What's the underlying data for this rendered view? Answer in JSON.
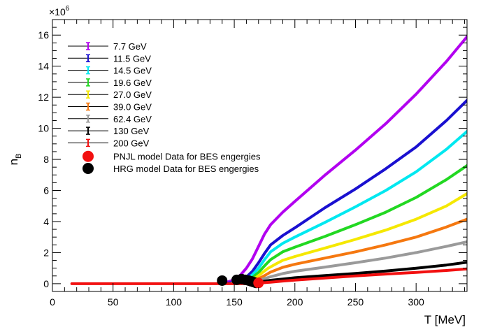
{
  "chart_data": {
    "type": "line",
    "title": "",
    "xlabel": "T [MeV]",
    "ylabel": "n",
    "ylabel_subscript": "B",
    "y_multiplier_label": "×10",
    "y_multiplier_exponent": "6",
    "xlim": [
      0,
      342
    ],
    "ylim": [
      -0.5,
      17
    ],
    "x_ticks": [
      0,
      50,
      100,
      150,
      200,
      250,
      300
    ],
    "x_tick_labels": [
      "0",
      "50",
      "100",
      "150",
      "200",
      "250",
      "300"
    ],
    "y_ticks": [
      0,
      2,
      4,
      6,
      8,
      10,
      12,
      14,
      16
    ],
    "y_tick_labels": [
      "0",
      "2",
      "4",
      "6",
      "8",
      "10",
      "12",
      "14",
      "16"
    ],
    "grid": false,
    "legend_position": "top-left",
    "series": [
      {
        "name": "7.7 GeV",
        "color": "#b200f0",
        "points": [
          [
            140,
            0.05
          ],
          [
            145,
            0.12
          ],
          [
            150,
            0.25
          ],
          [
            155,
            0.55
          ],
          [
            160,
            1.0
          ],
          [
            165,
            1.6
          ],
          [
            170,
            2.4
          ],
          [
            175,
            3.2
          ],
          [
            180,
            3.8
          ],
          [
            190,
            4.6
          ],
          [
            200,
            5.3
          ],
          [
            225,
            7.0
          ],
          [
            250,
            8.6
          ],
          [
            275,
            10.3
          ],
          [
            300,
            12.2
          ],
          [
            325,
            14.3
          ],
          [
            342,
            15.9
          ]
        ]
      },
      {
        "name": "11.5 GeV",
        "color": "#1a10d0",
        "points": [
          [
            145,
            0.05
          ],
          [
            150,
            0.1
          ],
          [
            155,
            0.2
          ],
          [
            160,
            0.42
          ],
          [
            165,
            0.8
          ],
          [
            170,
            1.35
          ],
          [
            175,
            1.95
          ],
          [
            180,
            2.5
          ],
          [
            190,
            3.1
          ],
          [
            200,
            3.6
          ],
          [
            225,
            4.9
          ],
          [
            250,
            6.1
          ],
          [
            275,
            7.4
          ],
          [
            300,
            8.8
          ],
          [
            325,
            10.5
          ],
          [
            342,
            11.8
          ]
        ]
      },
      {
        "name": "14.5 GeV",
        "color": "#00e8f0",
        "points": [
          [
            148,
            0.05
          ],
          [
            155,
            0.12
          ],
          [
            160,
            0.28
          ],
          [
            165,
            0.58
          ],
          [
            170,
            1.0
          ],
          [
            175,
            1.55
          ],
          [
            180,
            2.05
          ],
          [
            190,
            2.6
          ],
          [
            200,
            3.0
          ],
          [
            225,
            3.95
          ],
          [
            250,
            4.95
          ],
          [
            275,
            6.0
          ],
          [
            300,
            7.2
          ],
          [
            325,
            8.65
          ],
          [
            342,
            9.8
          ]
        ]
      },
      {
        "name": "19.6 GeV",
        "color": "#22d822",
        "points": [
          [
            150,
            0.04
          ],
          [
            155,
            0.08
          ],
          [
            160,
            0.18
          ],
          [
            165,
            0.4
          ],
          [
            170,
            0.72
          ],
          [
            175,
            1.15
          ],
          [
            180,
            1.55
          ],
          [
            190,
            2.05
          ],
          [
            200,
            2.35
          ],
          [
            225,
            3.05
          ],
          [
            250,
            3.8
          ],
          [
            275,
            4.6
          ],
          [
            300,
            5.55
          ],
          [
            325,
            6.7
          ],
          [
            342,
            7.6
          ]
        ]
      },
      {
        "name": "27.0 GeV",
        "color": "#f5e800",
        "points": [
          [
            152,
            0.03
          ],
          [
            158,
            0.08
          ],
          [
            163,
            0.2
          ],
          [
            168,
            0.4
          ],
          [
            173,
            0.7
          ],
          [
            178,
            1.0
          ],
          [
            185,
            1.3
          ],
          [
            190,
            1.5
          ],
          [
            200,
            1.75
          ],
          [
            225,
            2.3
          ],
          [
            250,
            2.85
          ],
          [
            275,
            3.45
          ],
          [
            300,
            4.15
          ],
          [
            325,
            5.0
          ],
          [
            342,
            5.8
          ]
        ]
      },
      {
        "name": "39.0 GeV",
        "color": "#f57810",
        "points": [
          [
            155,
            0.03
          ],
          [
            160,
            0.07
          ],
          [
            165,
            0.16
          ],
          [
            170,
            0.32
          ],
          [
            175,
            0.52
          ],
          [
            180,
            0.75
          ],
          [
            190,
            1.05
          ],
          [
            200,
            1.25
          ],
          [
            225,
            1.65
          ],
          [
            250,
            2.05
          ],
          [
            275,
            2.5
          ],
          [
            300,
            3.0
          ],
          [
            325,
            3.65
          ],
          [
            342,
            4.15
          ]
        ]
      },
      {
        "name": "62.4 GeV",
        "color": "#9a9a9a",
        "points": [
          [
            158,
            0.03
          ],
          [
            163,
            0.08
          ],
          [
            168,
            0.16
          ],
          [
            173,
            0.28
          ],
          [
            180,
            0.45
          ],
          [
            190,
            0.65
          ],
          [
            200,
            0.8
          ],
          [
            225,
            1.07
          ],
          [
            250,
            1.35
          ],
          [
            275,
            1.65
          ],
          [
            300,
            2.0
          ],
          [
            325,
            2.4
          ],
          [
            342,
            2.7
          ]
        ]
      },
      {
        "name": "130 GeV",
        "color": "#000000",
        "points": [
          [
            160,
            0.02
          ],
          [
            166,
            0.06
          ],
          [
            172,
            0.13
          ],
          [
            180,
            0.22
          ],
          [
            190,
            0.3
          ],
          [
            200,
            0.38
          ],
          [
            225,
            0.52
          ],
          [
            250,
            0.66
          ],
          [
            275,
            0.82
          ],
          [
            300,
            1.0
          ],
          [
            325,
            1.2
          ],
          [
            342,
            1.38
          ]
        ]
      },
      {
        "name": "200 GeV",
        "color": "#f21010",
        "points": [
          [
            16,
            0
          ],
          [
            50,
            0
          ],
          [
            100,
            0
          ],
          [
            150,
            0
          ],
          [
            160,
            0.01
          ],
          [
            170,
            0.04
          ],
          [
            180,
            0.1
          ],
          [
            190,
            0.17
          ],
          [
            200,
            0.23
          ],
          [
            225,
            0.37
          ],
          [
            250,
            0.5
          ],
          [
            275,
            0.62
          ],
          [
            300,
            0.73
          ],
          [
            325,
            0.85
          ],
          [
            342,
            0.95
          ]
        ]
      }
    ],
    "markers": [
      {
        "name": "PNJL model Data for BES engergies",
        "color": "#f21010",
        "points": [
          [
            170,
            0.05
          ]
        ]
      },
      {
        "name": "HRG model Data for BES engergies",
        "color": "#000000",
        "points": [
          [
            140,
            0.2
          ],
          [
            152,
            0.25
          ],
          [
            156,
            0.3
          ],
          [
            159,
            0.25
          ],
          [
            162,
            0.2
          ],
          [
            164,
            0.15
          ],
          [
            166,
            0.1
          ],
          [
            168,
            0.05
          ]
        ]
      }
    ]
  }
}
